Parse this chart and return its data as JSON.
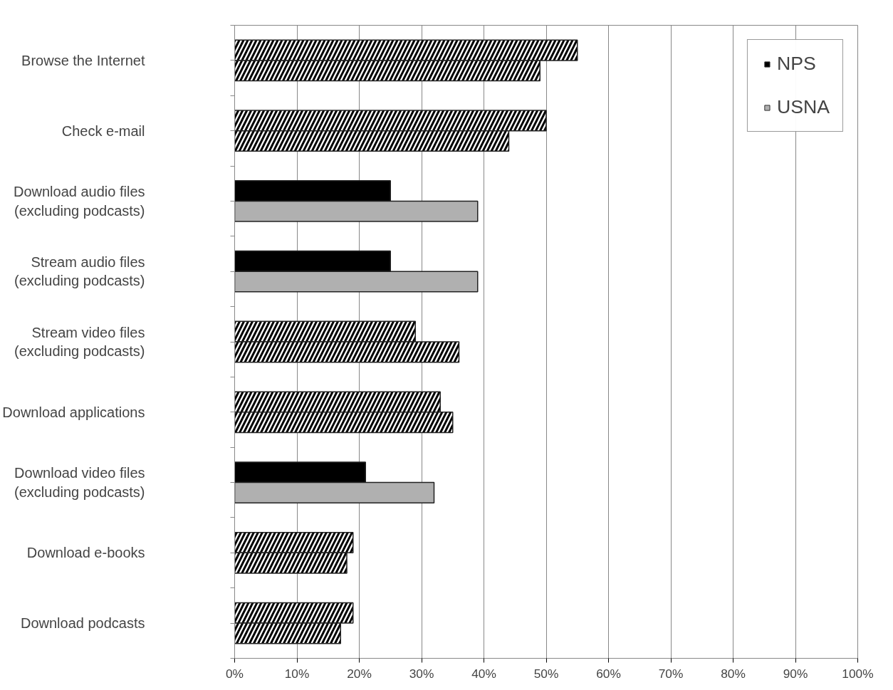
{
  "chart_data": {
    "type": "bar",
    "orientation": "horizontal",
    "categories": [
      "Browse the Internet",
      "Check e-mail",
      "Download audio files\n(excluding podcasts)",
      "Stream audio files\n(excluding podcasts)",
      "Stream video files\n(excluding podcasts)",
      "Download applications",
      "Download video files\n(excluding podcasts)",
      "Download e-books",
      "Download podcasts"
    ],
    "series": [
      {
        "name": "NPS",
        "color": "#000000",
        "colors": [
          "#ffffff",
          "#ffffff",
          "#000000",
          "#000000",
          "#ffffff",
          "#ffffff",
          "#000000",
          "#ffffff",
          "#ffffff"
        ],
        "values": [
          55,
          50,
          25,
          25,
          29,
          33,
          21,
          19,
          19
        ]
      },
      {
        "name": "USNA",
        "color": "#b0b0b0",
        "colors": [
          "#ffffff",
          "#ffffff",
          "#b0b0b0",
          "#b0b0b0",
          "#ffffff",
          "#ffffff",
          "#b0b0b0",
          "#ffffff",
          "#ffffff"
        ],
        "values": [
          49,
          44,
          39,
          39,
          36,
          35,
          32,
          18,
          17
        ]
      }
    ],
    "xlim": [
      0,
      100
    ],
    "xticks": [
      {
        "value": 0,
        "label": "0%"
      },
      {
        "value": 10,
        "label": "10%"
      },
      {
        "value": 20,
        "label": "20%"
      },
      {
        "value": 30,
        "label": "30%"
      },
      {
        "value": 40,
        "label": "40%"
      },
      {
        "value": 50,
        "label": "50%"
      },
      {
        "value": 60,
        "label": "60%"
      },
      {
        "value": 70,
        "label": "70%"
      },
      {
        "value": 80,
        "label": "80%"
      },
      {
        "value": 90,
        "label": "90%"
      },
      {
        "value": 100,
        "label": "100%"
      }
    ],
    "grid": "x",
    "legend": "top right"
  }
}
